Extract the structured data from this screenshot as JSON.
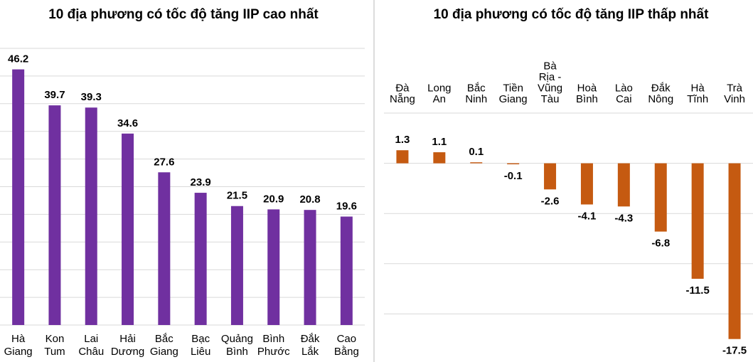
{
  "chart_data": [
    {
      "type": "bar",
      "title": "10 địa phương có tốc độ tăng IIP cao nhất",
      "categories": [
        [
          "Hà",
          "Giang"
        ],
        [
          "Kon",
          "Tum"
        ],
        [
          "Lai",
          "Châu"
        ],
        [
          "Hải",
          "Dương"
        ],
        [
          "Bắc",
          "Giang"
        ],
        [
          "Bạc",
          "Liêu"
        ],
        [
          "Quảng",
          "Bình"
        ],
        [
          "Bình",
          "Phước"
        ],
        [
          "Đắk",
          "Lắk"
        ],
        [
          "Cao",
          "Bằng"
        ]
      ],
      "values": [
        46.2,
        39.7,
        39.3,
        34.6,
        27.6,
        23.9,
        21.5,
        20.9,
        20.8,
        19.6
      ],
      "value_labels": [
        "46.2",
        "39.7",
        "39.3",
        "34.6",
        "27.6",
        "23.9",
        "21.5",
        "20.9",
        "20.8",
        "19.6"
      ],
      "xlabel": "",
      "ylabel": "",
      "ylim": [
        0,
        50
      ],
      "grid": true,
      "color": "#7030a0"
    },
    {
      "type": "bar",
      "title": "10 địa phương có tốc độ tăng IIP thấp nhất",
      "categories": [
        [
          "Đà",
          "Nẵng"
        ],
        [
          "Long",
          "An"
        ],
        [
          "Bắc",
          "Ninh"
        ],
        [
          "Tiền",
          "Giang"
        ],
        [
          "Bà",
          "Rịa -",
          "Vũng",
          "Tàu"
        ],
        [
          "Hoà",
          "Bình"
        ],
        [
          "Lào",
          "Cai"
        ],
        [
          "Đắk",
          "Nông"
        ],
        [
          "Hà",
          "Tĩnh"
        ],
        [
          "Trà",
          "Vinh"
        ]
      ],
      "values": [
        1.3,
        1.1,
        0.1,
        -0.1,
        -2.6,
        -4.1,
        -4.3,
        -6.8,
        -11.5,
        -17.5
      ],
      "value_labels": [
        "1.3",
        "1.1",
        "0.1",
        "-0.1",
        "-2.6",
        "-4.1",
        "-4.3",
        "-6.8",
        "-11.5",
        "-17.5"
      ],
      "xlabel": "",
      "ylabel": "",
      "ylim": [
        -20,
        5
      ],
      "grid": true,
      "color": "#c55a11"
    }
  ]
}
